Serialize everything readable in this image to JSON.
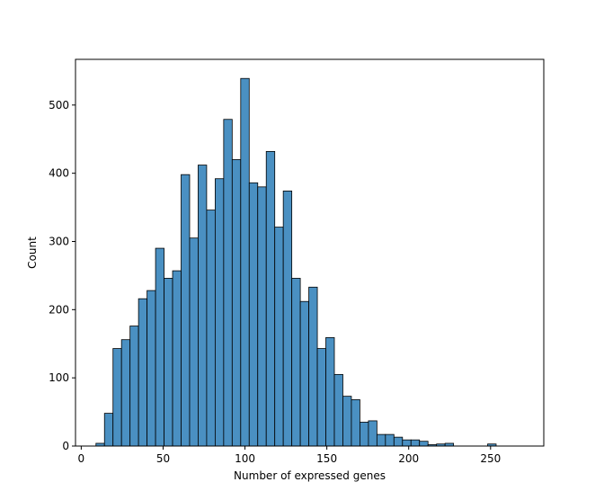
{
  "chart_data": {
    "type": "bar",
    "subtype": "histogram",
    "title": "",
    "xlabel": "Number of expressed genes",
    "ylabel": "Count",
    "xlim": [
      -3.5,
      282.5
    ],
    "ylim": [
      0,
      567
    ],
    "xticks": [
      0,
      50,
      100,
      150,
      200,
      250
    ],
    "yticks": [
      0,
      100,
      200,
      300,
      400,
      500
    ],
    "grid": false,
    "legend": "none",
    "bar_color": "#4a90c2",
    "edge_color": "#000000",
    "bins": {
      "start": 9,
      "width": 5.2,
      "counts": [
        4,
        48,
        143,
        156,
        176,
        216,
        228,
        290,
        246,
        257,
        398,
        305,
        412,
        346,
        392,
        479,
        420,
        539,
        386,
        380,
        432,
        321,
        374,
        246,
        212,
        233,
        143,
        159,
        105,
        73,
        68,
        35,
        37,
        17,
        17,
        13,
        9,
        9,
        7,
        2,
        3,
        4,
        0,
        0,
        0,
        0,
        3
      ]
    }
  }
}
